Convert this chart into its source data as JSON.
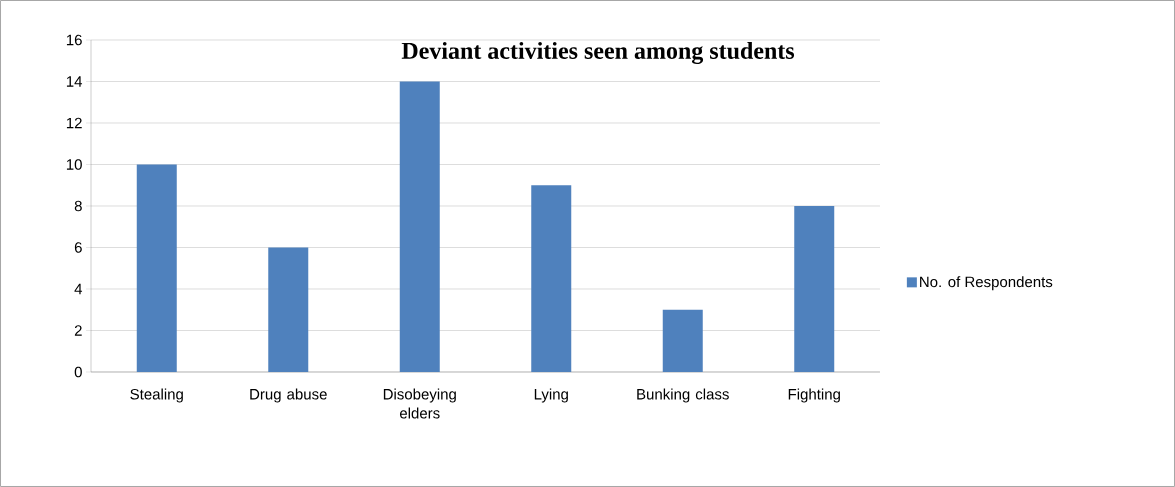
{
  "chart_data": {
    "type": "bar",
    "title": "Deviant activities seen among students",
    "categories": [
      "Stealing",
      "Drug abuse",
      "Disobeying elders",
      "Lying",
      "Bunking class",
      "Fighting"
    ],
    "series": [
      {
        "name": "No. of Respondents",
        "color": "#4f81bd",
        "values": [
          10,
          6,
          14,
          9,
          3,
          8
        ]
      }
    ],
    "ylim": [
      0,
      16
    ],
    "yticks": [
      0,
      2,
      4,
      6,
      8,
      10,
      12,
      14,
      16
    ],
    "grid": "y",
    "legend": "right"
  }
}
